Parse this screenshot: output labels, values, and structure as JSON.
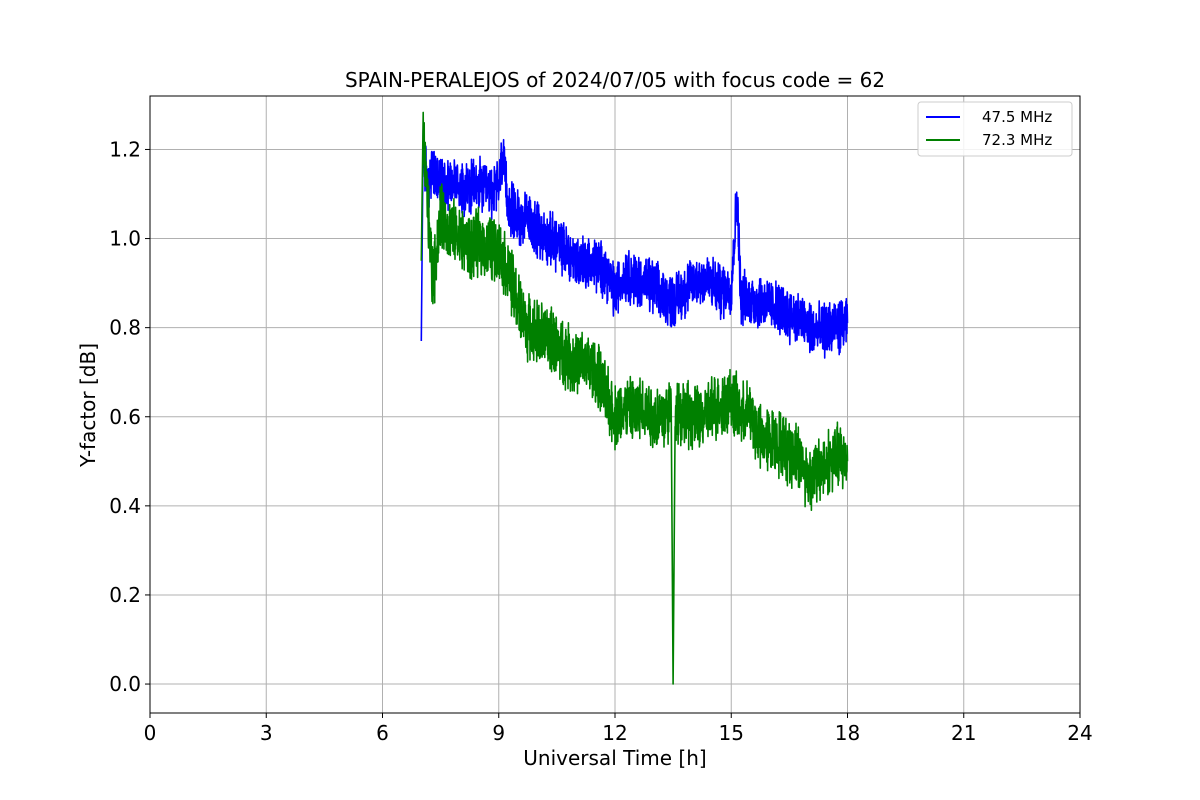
{
  "chart_data": {
    "type": "line",
    "title": "SPAIN-PERALEJOS of 2024/07/05 with focus code = 62",
    "xlabel": "Universal Time [h]",
    "ylabel": "Y-factor [dB]",
    "xlim": [
      0,
      24
    ],
    "ylim": [
      -0.065,
      1.32
    ],
    "x_ticks": [
      0,
      3,
      6,
      9,
      12,
      15,
      18,
      21,
      24
    ],
    "y_ticks": [
      "0.0",
      "0.2",
      "0.4",
      "0.6",
      "0.8",
      "1.0",
      "1.2"
    ],
    "grid": true,
    "legend_position": "top-right",
    "series": [
      {
        "name": "47.5 MHz",
        "color": "#0000ff",
        "x": [
          7.0,
          7.05,
          7.15,
          7.3,
          7.5,
          7.75,
          8.0,
          8.25,
          8.5,
          8.75,
          9.0,
          9.1,
          9.25,
          9.5,
          9.75,
          10.0,
          10.25,
          10.5,
          10.75,
          11.0,
          11.25,
          11.5,
          11.75,
          12.0,
          12.25,
          12.5,
          12.75,
          13.0,
          13.25,
          13.5,
          13.75,
          14.0,
          14.25,
          14.5,
          14.75,
          15.0,
          15.15,
          15.25,
          15.5,
          15.75,
          16.0,
          16.25,
          16.5,
          16.75,
          17.0,
          17.25,
          17.5,
          17.75,
          18.0
        ],
        "values": [
          0.77,
          1.2,
          1.13,
          1.15,
          1.12,
          1.13,
          1.12,
          1.11,
          1.12,
          1.1,
          1.12,
          1.18,
          1.07,
          1.05,
          1.04,
          1.02,
          1.0,
          0.99,
          0.97,
          0.95,
          0.95,
          0.94,
          0.93,
          0.88,
          0.92,
          0.91,
          0.9,
          0.89,
          0.87,
          0.86,
          0.88,
          0.9,
          0.91,
          0.9,
          0.88,
          0.89,
          1.1,
          0.87,
          0.86,
          0.86,
          0.85,
          0.84,
          0.83,
          0.82,
          0.8,
          0.79,
          0.8,
          0.8,
          0.81
        ],
        "amplitude": 0.05
      },
      {
        "name": "72.3 MHz",
        "color": "#008000",
        "x": [
          7.0,
          7.05,
          7.15,
          7.3,
          7.5,
          7.75,
          8.0,
          8.25,
          8.5,
          8.75,
          9.0,
          9.25,
          9.5,
          9.75,
          10.0,
          10.25,
          10.5,
          10.75,
          11.0,
          11.25,
          11.5,
          11.75,
          12.0,
          12.25,
          12.5,
          12.75,
          13.0,
          13.25,
          13.45,
          13.5,
          13.55,
          13.75,
          14.0,
          14.25,
          14.5,
          14.75,
          15.0,
          15.25,
          15.5,
          15.75,
          16.0,
          16.25,
          16.5,
          16.75,
          17.0,
          17.25,
          17.5,
          17.75,
          18.0
        ],
        "values": [
          0.95,
          1.22,
          1.1,
          0.9,
          1.05,
          1.02,
          1.0,
          0.98,
          0.99,
          0.98,
          0.97,
          0.93,
          0.85,
          0.8,
          0.79,
          0.78,
          0.76,
          0.74,
          0.72,
          0.72,
          0.7,
          0.65,
          0.6,
          0.62,
          0.61,
          0.62,
          0.6,
          0.6,
          0.62,
          0.0,
          0.62,
          0.61,
          0.6,
          0.59,
          0.62,
          0.63,
          0.64,
          0.6,
          0.61,
          0.55,
          0.55,
          0.54,
          0.52,
          0.51,
          0.46,
          0.48,
          0.5,
          0.51,
          0.5
        ],
        "amplitude": 0.06
      }
    ]
  }
}
